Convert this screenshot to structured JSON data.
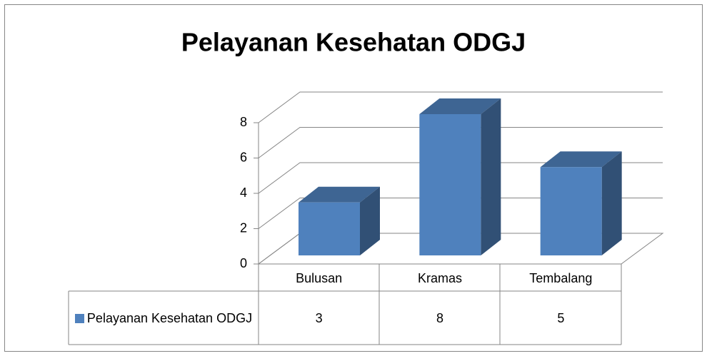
{
  "chart_data": {
    "type": "bar3d",
    "title": "Pelayanan Kesehatan ODGJ",
    "categories": [
      "Bulusan",
      "Kramas",
      "Tembalang"
    ],
    "series": [
      {
        "name": "Pelayanan Kesehatan ODGJ",
        "color": "#4f81bd",
        "values": [
          3,
          8,
          5
        ]
      }
    ],
    "ylim": [
      0,
      8
    ],
    "yticks": [
      0,
      2,
      4,
      6,
      8
    ],
    "grid": true,
    "data_table": true
  }
}
